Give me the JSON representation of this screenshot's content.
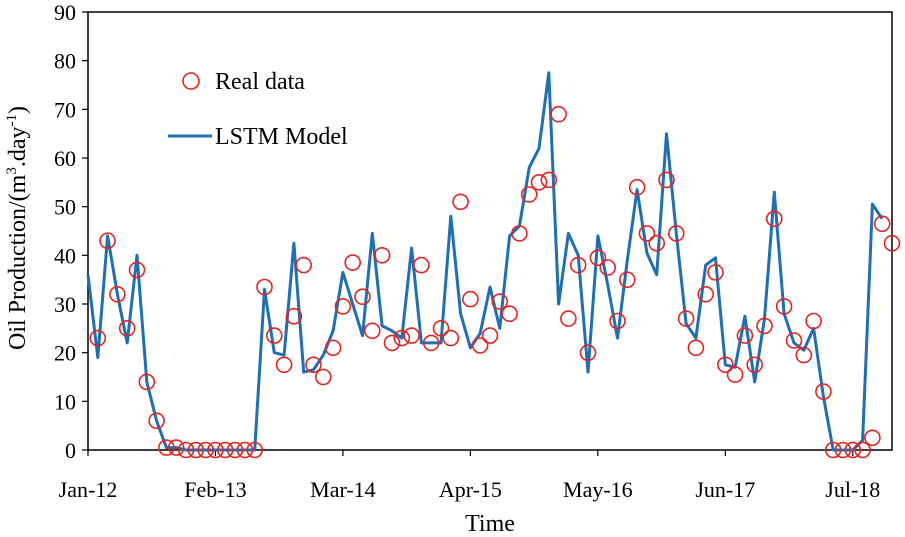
{
  "chart_data": {
    "type": "line",
    "title": "",
    "xlabel": "Time",
    "ylabel": "Oil Production/(m³.day⁻¹)",
    "ylabel_parts": {
      "pre": "Oil Production/(m",
      "sup1": "3",
      "mid": ".day",
      "sup2": "-1",
      "post": ")"
    },
    "ylim": [
      0,
      90
    ],
    "yticks": [
      0,
      10,
      20,
      30,
      40,
      50,
      60,
      70,
      80,
      90
    ],
    "xlim": [
      0,
      82
    ],
    "x_tick_labels": [
      "Jan-12",
      "Feb-13",
      "Mar-14",
      "Apr-15",
      "May-16",
      "Jun-17",
      "Jul-18"
    ],
    "x_tick_positions": [
      0,
      13,
      26,
      39,
      52,
      65,
      78
    ],
    "grid": false,
    "legend": {
      "placement": "top-left",
      "entries": [
        "Real data",
        "LSTM Model"
      ]
    },
    "series": [
      {
        "name": "Real data",
        "kind": "scatter",
        "color": "#e8231f",
        "x": [
          1,
          2,
          3,
          4,
          5,
          6,
          7,
          8,
          9,
          10,
          11,
          12,
          13,
          14,
          15,
          16,
          17,
          18,
          19,
          20,
          21,
          22,
          23,
          24,
          25,
          26,
          27,
          28,
          29,
          30,
          31,
          32,
          33,
          34,
          35,
          36,
          37,
          38,
          39,
          40,
          41,
          42,
          43,
          44,
          45,
          46,
          47,
          48,
          49,
          50,
          51,
          52,
          53,
          54,
          55,
          56,
          57,
          58,
          59,
          60,
          61,
          62,
          63,
          64,
          65,
          66,
          67,
          68,
          69,
          70,
          71,
          72,
          73,
          74,
          75,
          76,
          77,
          78,
          79,
          80,
          81,
          82
        ],
        "values": [
          23,
          43,
          32,
          25,
          37,
          14,
          6,
          0.5,
          0.5,
          0,
          0,
          0,
          0,
          0,
          0,
          0,
          0,
          33.5,
          23.5,
          17.5,
          27.5,
          38,
          17.5,
          15,
          21,
          29.5,
          38.5,
          31.5,
          24.5,
          40,
          22,
          23,
          23.5,
          38,
          22,
          25,
          23,
          51,
          31,
          21.5,
          23.5,
          30.5,
          28,
          44.5,
          52.5,
          55,
          55.5,
          69,
          27,
          38,
          20,
          39.5,
          37.5,
          26.5,
          35,
          54,
          44.5,
          42.5,
          55.5,
          44.5,
          27,
          21,
          32,
          36.5,
          17.5,
          15.5,
          23.5,
          17.5,
          25.5,
          47.5,
          29.5,
          22.5,
          19.5,
          26.5,
          12,
          0,
          0,
          0,
          0,
          2.5,
          46.5,
          42.5
        ]
      },
      {
        "name": "LSTM Model",
        "kind": "line",
        "color": "#1f6fb4",
        "x": [
          0,
          1,
          2,
          3,
          4,
          5,
          6,
          7,
          8,
          9,
          10,
          11,
          12,
          13,
          14,
          15,
          16,
          17,
          18,
          19,
          20,
          21,
          22,
          23,
          24,
          25,
          26,
          27,
          28,
          29,
          30,
          31,
          32,
          33,
          34,
          35,
          36,
          37,
          38,
          39,
          40,
          41,
          42,
          43,
          44,
          45,
          46,
          47,
          48,
          49,
          50,
          51,
          52,
          53,
          54,
          55,
          56,
          57,
          58,
          59,
          60,
          61,
          62,
          63,
          64,
          65,
          66,
          67,
          68,
          69,
          70,
          71,
          72,
          73,
          74,
          75,
          76,
          77,
          78,
          79,
          80,
          81
        ],
        "values": [
          36,
          19,
          44,
          32,
          22,
          40,
          14,
          6,
          0.5,
          0.5,
          0,
          0,
          0,
          0,
          0,
          0,
          0,
          0,
          33,
          20,
          19.5,
          42.5,
          16,
          16.5,
          19.5,
          24.5,
          36.5,
          30,
          23.5,
          44.5,
          25.5,
          24.5,
          23,
          41.5,
          22,
          22,
          22,
          48,
          28,
          21,
          24,
          33.5,
          25,
          44,
          46,
          58,
          62,
          77.5,
          30,
          44.5,
          40,
          16,
          44,
          34,
          23,
          39,
          53.5,
          40.5,
          36,
          65,
          44.5,
          26,
          23,
          38,
          39.5,
          17.5,
          17,
          27.5,
          14,
          27,
          53,
          28,
          22,
          20.5,
          25,
          11,
          0,
          0,
          0,
          2,
          50.5,
          47.5
        ]
      }
    ]
  }
}
